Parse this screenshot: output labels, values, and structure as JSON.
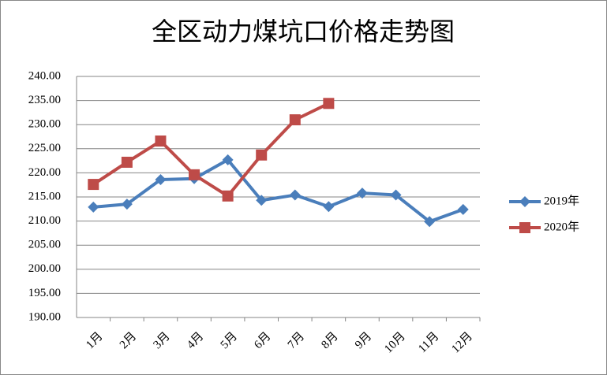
{
  "chart_data": {
    "type": "line",
    "title": "全区动力煤坑口价格走势图",
    "categories": [
      "1月",
      "2月",
      "3月",
      "4月",
      "5月",
      "6月",
      "7月",
      "8月",
      "9月",
      "10月",
      "11月",
      "12月"
    ],
    "series": [
      {
        "name": "2019年",
        "color": "#4a7ebb",
        "marker": "diamond",
        "values": [
          212.9,
          213.5,
          218.6,
          218.8,
          222.7,
          214.3,
          215.4,
          213.0,
          215.8,
          215.4,
          209.9,
          212.4
        ]
      },
      {
        "name": "2020年",
        "color": "#be4b48",
        "marker": "square",
        "values": [
          217.6,
          222.2,
          226.6,
          219.6,
          215.2,
          223.7,
          231.0,
          234.4,
          null,
          null,
          null,
          null
        ]
      }
    ],
    "ylim": [
      190,
      240
    ],
    "yticks": [
      {
        "value": 190,
        "label": "190.00"
      },
      {
        "value": 195,
        "label": "195.00"
      },
      {
        "value": 200,
        "label": "200.00"
      },
      {
        "value": 205,
        "label": "205.00"
      },
      {
        "value": 210,
        "label": "210.00"
      },
      {
        "value": 215,
        "label": "215.00"
      },
      {
        "value": 220,
        "label": "220.00"
      },
      {
        "value": 225,
        "label": "225.00"
      },
      {
        "value": 230,
        "label": "230.00"
      },
      {
        "value": 235,
        "label": "235.00"
      },
      {
        "value": 240,
        "label": "240.00"
      }
    ],
    "grid": true,
    "legend": "right"
  }
}
